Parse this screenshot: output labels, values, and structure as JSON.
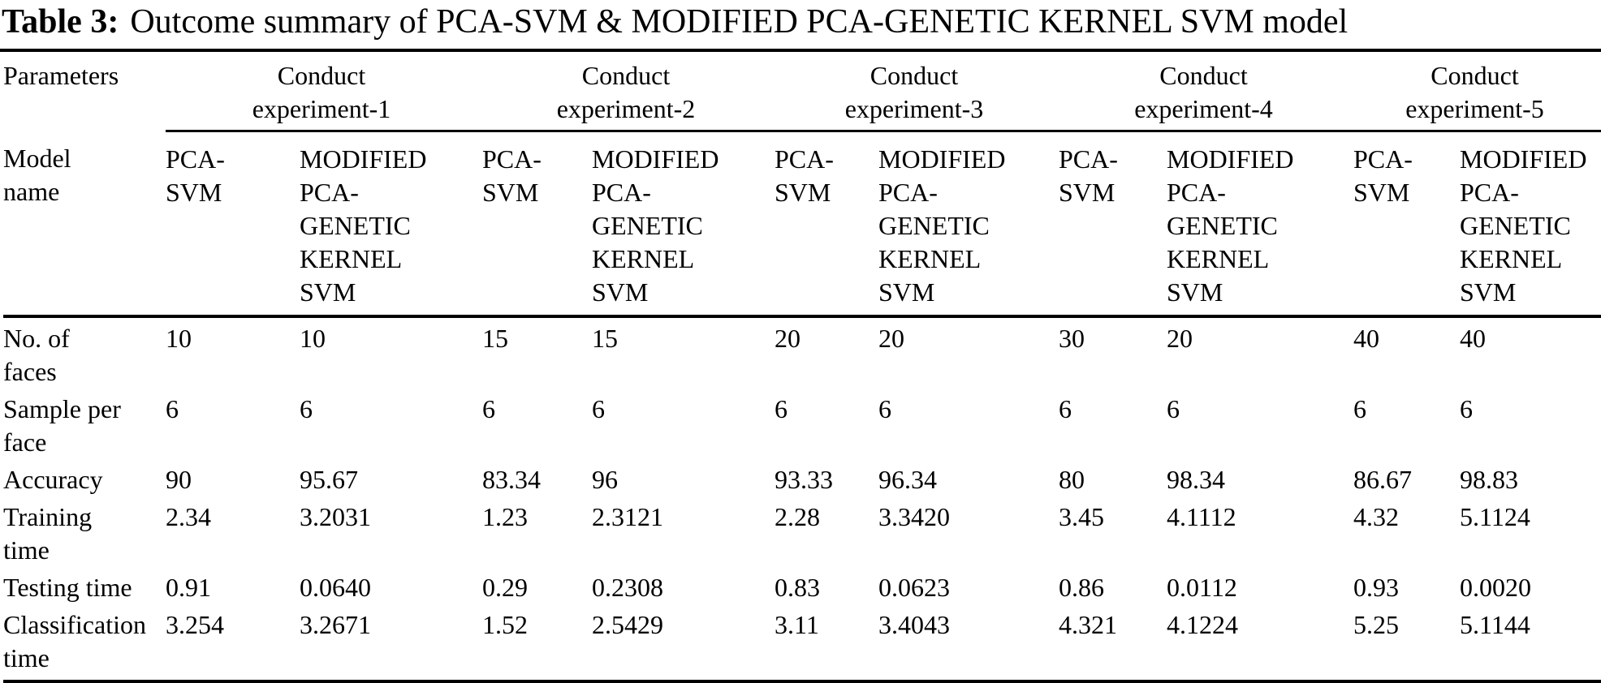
{
  "caption": {
    "label": "Table 3:",
    "text": "Outcome summary of PCA-SVM & MODIFIED PCA-GENETIC KERNEL SVM model"
  },
  "table": {
    "parameters_header": "Parameters",
    "model_name_header": "Model\nname",
    "experiments": [
      {
        "label": "Conduct\nexperiment-1"
      },
      {
        "label": "Conduct\nexperiment-2"
      },
      {
        "label": "Conduct\nexperiment-3"
      },
      {
        "label": "Conduct\nexperiment-4"
      },
      {
        "label": "Conduct\nexperiment-5"
      }
    ],
    "model_columns": [
      "PCA-\nSVM",
      "MODIFIED\nPCA-\nGENETIC\nKERNEL\nSVM"
    ],
    "rows": [
      {
        "label": "No. of\nfaces",
        "values": [
          "10",
          "10",
          "15",
          "15",
          "20",
          "20",
          "30",
          "20",
          "40",
          "40"
        ]
      },
      {
        "label": "Sample per\nface",
        "values": [
          "6",
          "6",
          "6",
          "6",
          "6",
          "6",
          "6",
          "6",
          "6",
          "6"
        ]
      },
      {
        "label": "Accuracy",
        "values": [
          "90",
          "95.67",
          "83.34",
          "96",
          "93.33",
          "96.34",
          "80",
          "98.34",
          "86.67",
          "98.83"
        ]
      },
      {
        "label": "Training\ntime",
        "values": [
          "2.34",
          "3.2031",
          "1.23",
          "2.3121",
          "2.28",
          "3.3420",
          "3.45",
          "4.1112",
          "4.32",
          "5.1124"
        ]
      },
      {
        "label": "Testing time",
        "values": [
          "0.91",
          "0.0640",
          "0.29",
          "0.2308",
          "0.83",
          "0.0623",
          "0.86",
          "0.0112",
          "0.93",
          "0.0020"
        ]
      },
      {
        "label": "Classification\ntime",
        "values": [
          "3.254",
          "3.2671",
          "1.52",
          "2.5429",
          "3.11",
          "3.4043",
          "4.321",
          "4.1224",
          "5.25",
          "5.1144"
        ]
      }
    ],
    "text_color": "#000000",
    "background_color": "#ffffff"
  }
}
